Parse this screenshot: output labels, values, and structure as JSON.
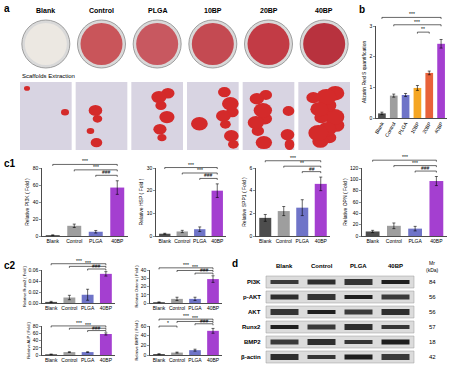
{
  "chart_data": [
    {
      "type": "bar",
      "panel_label": "b",
      "y_title": "Alizarin Red S quantification",
      "categories": [
        "Blank",
        "Control",
        "PLGA",
        "10BP",
        "20BP",
        "40BP"
      ],
      "values": [
        0.15,
        0.73,
        0.75,
        0.98,
        1.47,
        2.42
      ],
      "errors": [
        0.04,
        0.05,
        0.05,
        0.08,
        0.06,
        0.14
      ],
      "colors": [
        "#4d4d4d",
        "#9e9e9e",
        "#6f74c8",
        "#f5a623",
        "#e8623a",
        "#a43fd0"
      ],
      "ylim": [
        0,
        3
      ],
      "yticks": [
        0,
        1,
        2,
        3
      ],
      "brackets": [
        {
          "from": "10BP",
          "to": "20BP",
          "text": "**"
        },
        {
          "from": "Control",
          "to": "40BP",
          "text": "***"
        },
        {
          "from": "Blank",
          "to": "40BP",
          "text": "***"
        }
      ]
    },
    {
      "type": "bar",
      "panel_label": "c1",
      "y_title": "Relative PI3K ( Fold )",
      "categories": [
        "Blank",
        "Control",
        "PLGA",
        "40BP"
      ],
      "values": [
        1,
        12,
        5,
        57
      ],
      "errors": [
        0.3,
        2,
        1.5,
        8
      ],
      "colors": [
        "#4d4d4d",
        "#9e9e9e",
        "#6f74c8",
        "#a43fd0"
      ],
      "ylim": [
        0,
        80
      ],
      "yticks": [
        0,
        20,
        40,
        60,
        80
      ],
      "brackets": [
        {
          "from": "PLGA",
          "to": "40BP",
          "text": "###"
        },
        {
          "from": "Control",
          "to": "40BP",
          "text": "***"
        },
        {
          "from": "Blank",
          "to": "40BP",
          "text": "***"
        }
      ]
    },
    {
      "type": "bar",
      "y_title": "Relative HSP ( Fold )",
      "categories": [
        "Blank",
        "Control",
        "PLGA",
        "40BP"
      ],
      "values": [
        1,
        2,
        3,
        20
      ],
      "errors": [
        0.2,
        0.5,
        1,
        3
      ],
      "colors": [
        "#4d4d4d",
        "#9e9e9e",
        "#6f74c8",
        "#a43fd0"
      ],
      "ylim": [
        0,
        30
      ],
      "yticks": [
        0,
        10,
        20,
        30
      ],
      "brackets": [
        {
          "from": "PLGA",
          "to": "40BP",
          "text": "###"
        },
        {
          "from": "Control",
          "to": "40BP",
          "text": "***"
        },
        {
          "from": "Blank",
          "to": "40BP",
          "text": "***"
        }
      ]
    },
    {
      "type": "bar",
      "y_title": "Relative SPP1 ( Fold )",
      "categories": [
        "Blank",
        "Control",
        "PLGA",
        "40BP"
      ],
      "values": [
        1.6,
        2.2,
        2.5,
        4.6
      ],
      "errors": [
        0.3,
        0.4,
        0.7,
        0.6
      ],
      "colors": [
        "#4d4d4d",
        "#9e9e9e",
        "#6f74c8",
        "#a43fd0"
      ],
      "ylim": [
        0,
        6
      ],
      "yticks": [
        0,
        2,
        4,
        6
      ],
      "brackets": [
        {
          "from": "PLGA",
          "to": "40BP",
          "text": "##"
        },
        {
          "from": "Control",
          "to": "40BP",
          "text": "**"
        },
        {
          "from": "Blank",
          "to": "40BP",
          "text": "***"
        }
      ]
    },
    {
      "type": "bar",
      "y_title": "Relative OPN ( Fold )",
      "categories": [
        "Blank",
        "Control",
        "PLGA",
        "40BP"
      ],
      "values": [
        8,
        18,
        13,
        97
      ],
      "errors": [
        2,
        5,
        4,
        8
      ],
      "colors": [
        "#4d4d4d",
        "#9e9e9e",
        "#6f74c8",
        "#a43fd0"
      ],
      "ylim": [
        0,
        120
      ],
      "yticks": [
        0,
        20,
        40,
        60,
        80,
        100,
        120
      ],
      "brackets": [
        {
          "from": "PLGA",
          "to": "40BP",
          "text": "###"
        },
        {
          "from": "Control",
          "to": "40BP",
          "text": "***"
        },
        {
          "from": "Blank",
          "to": "40BP",
          "text": "***"
        }
      ]
    },
    {
      "type": "bar",
      "panel_label": "c2",
      "y_title": "Relative Runx2 ( Fold )",
      "categories": [
        "Blank",
        "Control",
        "PLGA",
        "40BP"
      ],
      "values": [
        0.002,
        0.01,
        0.015,
        0.053
      ],
      "errors": [
        0.001,
        0.004,
        0.01,
        0.004
      ],
      "colors": [
        "#4d4d4d",
        "#9e9e9e",
        "#6f74c8",
        "#a43fd0"
      ],
      "ylim": [
        0,
        0.06
      ],
      "yticks": [
        {
          "value": 0,
          "label": "0.00"
        },
        {
          "value": 0.02,
          "label": "0.02"
        },
        {
          "value": 0.04,
          "label": "0.04"
        },
        {
          "value": 0.06,
          "label": "0.06"
        }
      ],
      "brackets": [
        {
          "from": "PLGA",
          "to": "40BP",
          "text": "###"
        },
        {
          "from": "Control",
          "to": "40BP",
          "text": "***"
        },
        {
          "from": "Blank",
          "to": "40BP",
          "text": "***"
        }
      ]
    },
    {
      "type": "bar",
      "y_title": "Relative Osterix ( Fold )",
      "categories": [
        "Blank",
        "Control",
        "PLGA",
        "40BP"
      ],
      "values": [
        1,
        5,
        5,
        29
      ],
      "errors": [
        0.3,
        2,
        2,
        4
      ],
      "colors": [
        "#4d4d4d",
        "#9e9e9e",
        "#6f74c8",
        "#a43fd0"
      ],
      "ylim": [
        0,
        40
      ],
      "yticks": [
        0,
        10,
        20,
        30,
        40
      ],
      "brackets": [
        {
          "from": "PLGA",
          "to": "40BP",
          "text": "###"
        },
        {
          "from": "Control",
          "to": "40BP",
          "text": "***"
        },
        {
          "from": "Blank",
          "to": "40BP",
          "text": "***"
        }
      ]
    },
    {
      "type": "bar",
      "y_title": "Relative ALP ( Fold )",
      "categories": [
        "Blank",
        "Control",
        "PLGA",
        "40BP"
      ],
      "values": [
        2,
        8,
        8,
        58
      ],
      "errors": [
        0.5,
        1,
        1,
        3
      ],
      "colors": [
        "#4d4d4d",
        "#9e9e9e",
        "#6f74c8",
        "#a43fd0"
      ],
      "ylim": [
        0,
        80
      ],
      "yticks": [
        0,
        20,
        40,
        60,
        80
      ],
      "brackets": [
        {
          "from": "PLGA",
          "to": "40BP",
          "text": "###"
        },
        {
          "from": "Control",
          "to": "40BP",
          "text": "***"
        },
        {
          "from": "Blank",
          "to": "40BP",
          "text": "***"
        }
      ]
    },
    {
      "type": "bar",
      "y_title": "Relative BMP2 ( Fold )",
      "categories": [
        "Blank",
        "Control",
        "PLGA",
        "40BP"
      ],
      "values": [
        2,
        5,
        10,
        50
      ],
      "errors": [
        0.5,
        1,
        2,
        5
      ],
      "colors": [
        "#4d4d4d",
        "#9e9e9e",
        "#6f74c8",
        "#a43fd0"
      ],
      "ylim": [
        0,
        60
      ],
      "yticks": [
        0,
        20,
        40,
        60
      ],
      "brackets": [
        {
          "from": "Blank",
          "to": "Control",
          "text": "*"
        },
        {
          "from": "PLGA",
          "to": "40BP",
          "text": "###"
        },
        {
          "from": "Control",
          "to": "40BP",
          "text": "***"
        },
        {
          "from": "Blank",
          "to": "40BP",
          "text": "***"
        }
      ]
    }
  ],
  "panel_a": {
    "label": "a",
    "groups": [
      "Blank",
      "Control",
      "PLGA",
      "10BP",
      "20BP",
      "40BP"
    ],
    "row_label": "Scaffolds Extraction"
  },
  "panel_d": {
    "label": "d",
    "columns": [
      "Blank",
      "Control",
      "PLGA",
      "40BP"
    ],
    "mr_header": [
      "Mr",
      "(kDa)"
    ],
    "rows": [
      {
        "protein": "PI3K",
        "mr": 84
      },
      {
        "protein": "p-AKT",
        "mr": 56
      },
      {
        "protein": "AKT",
        "mr": 56
      },
      {
        "protein": "Runx2",
        "mr": 57
      },
      {
        "protein": "BMP2",
        "mr": 18
      },
      {
        "protein": "β-actin",
        "mr": 42
      }
    ]
  }
}
